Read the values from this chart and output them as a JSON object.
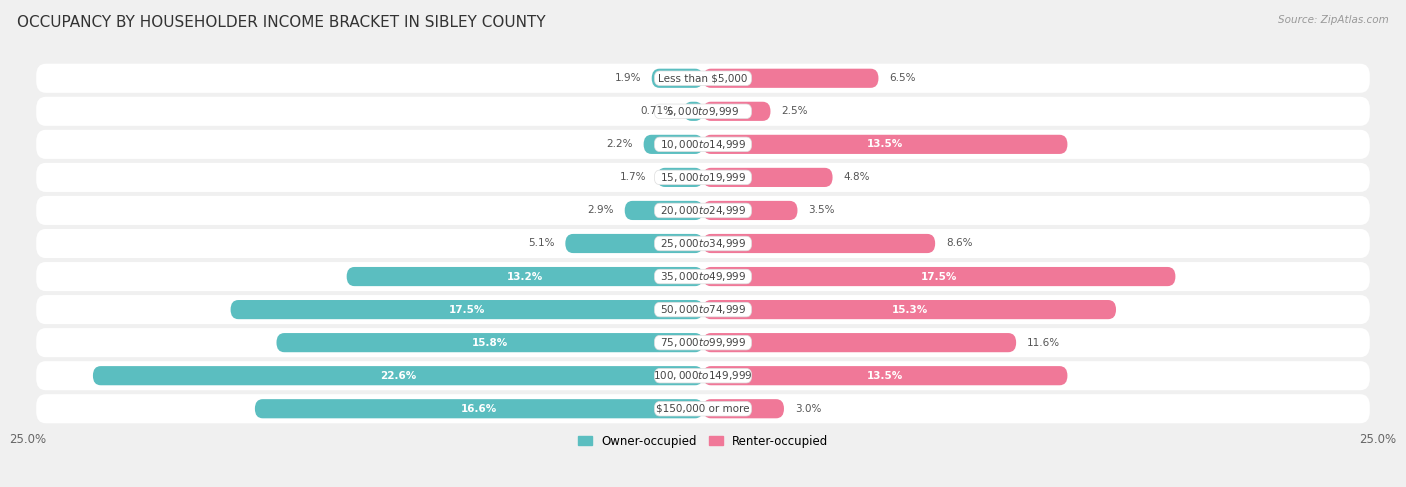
{
  "title": "OCCUPANCY BY HOUSEHOLDER INCOME BRACKET IN SIBLEY COUNTY",
  "source": "Source: ZipAtlas.com",
  "categories": [
    "Less than $5,000",
    "$5,000 to $9,999",
    "$10,000 to $14,999",
    "$15,000 to $19,999",
    "$20,000 to $24,999",
    "$25,000 to $34,999",
    "$35,000 to $49,999",
    "$50,000 to $74,999",
    "$75,000 to $99,999",
    "$100,000 to $149,999",
    "$150,000 or more"
  ],
  "owner_values": [
    1.9,
    0.71,
    2.2,
    1.7,
    2.9,
    5.1,
    13.2,
    17.5,
    15.8,
    22.6,
    16.6
  ],
  "renter_values": [
    6.5,
    2.5,
    13.5,
    4.8,
    3.5,
    8.6,
    17.5,
    15.3,
    11.6,
    13.5,
    3.0
  ],
  "owner_color": "#5bbec0",
  "renter_color": "#f07898",
  "owner_color_light": "#a8dfe0",
  "renter_color_light": "#f8b8cc",
  "owner_label": "Owner-occupied",
  "renter_label": "Renter-occupied",
  "xlim": 25.0,
  "bar_height": 0.58,
  "bg_color": "#f0f0f0",
  "row_bg": "#ffffff",
  "title_fontsize": 11,
  "category_fontsize": 7.5,
  "value_fontsize": 7.5,
  "legend_fontsize": 8.5,
  "axis_label_fontsize": 8.5,
  "source_fontsize": 7.5
}
